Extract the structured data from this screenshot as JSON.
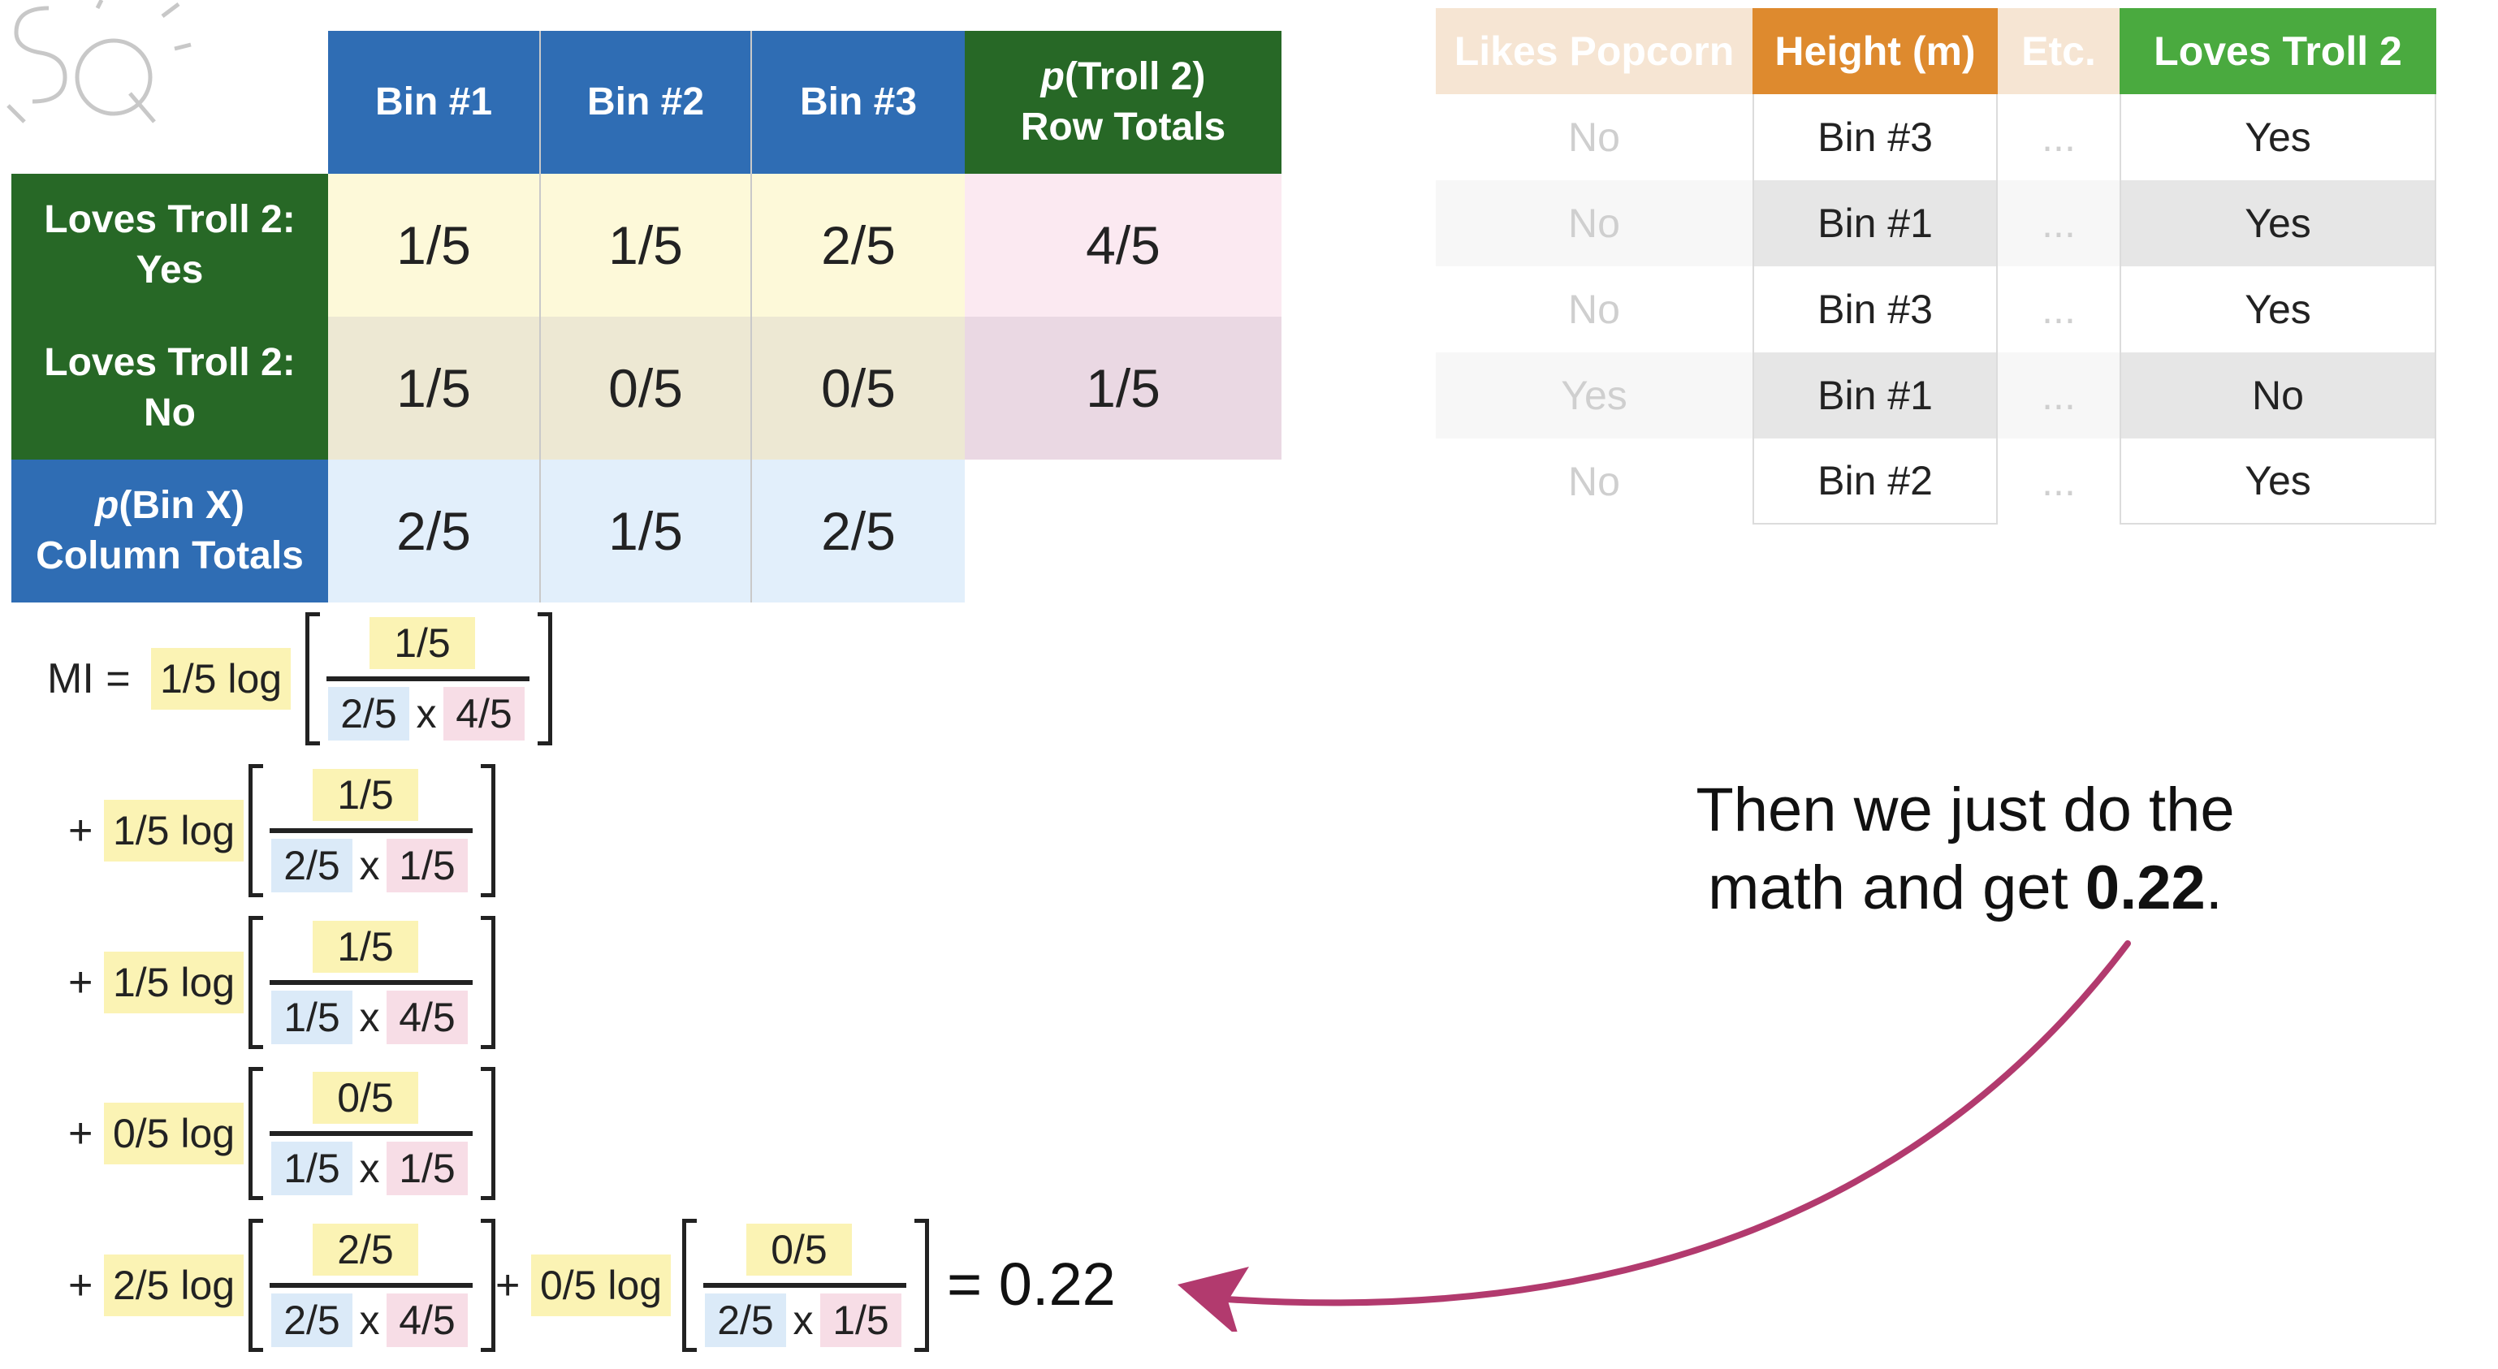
{
  "joint_table": {
    "col_headers": [
      "Bin #1",
      "Bin #2",
      "Bin #3"
    ],
    "row_total_header": {
      "p": "p",
      "line1": "(Troll 2)",
      "line2": "Row Totals"
    },
    "rows": [
      {
        "label_line1": "Loves Troll 2:",
        "label_line2": "Yes",
        "values": [
          "1/5",
          "1/5",
          "2/5"
        ],
        "total": "4/5"
      },
      {
        "label_line1": "Loves Troll 2:",
        "label_line2": "No",
        "values": [
          "1/5",
          "0/5",
          "0/5"
        ],
        "total": "1/5"
      }
    ],
    "col_total_label": {
      "p": "p",
      "line1": "(Bin X)",
      "line2": "Column Totals"
    },
    "col_totals": [
      "2/5",
      "1/5",
      "2/5"
    ],
    "colors": {
      "blue_header": "#2f6db4",
      "green_header": "#276826",
      "yellow_cell": "#fdf9d9",
      "pink_cell": "#fbe9f1",
      "blue_cell": "#e2effb"
    }
  },
  "data_table": {
    "headers": [
      "Likes Popcorn",
      "Height (m)",
      "Etc.",
      "Loves Troll 2"
    ],
    "header_colors": [
      "#f6e5d3",
      "#de8a2e",
      "#f6e5d3",
      "#4aaa3f"
    ],
    "rows": [
      [
        "No",
        "Bin #3",
        "...",
        "Yes"
      ],
      [
        "No",
        "Bin #1",
        "...",
        "Yes"
      ],
      [
        "No",
        "Bin #3",
        "...",
        "Yes"
      ],
      [
        "Yes",
        "Bin #1",
        "...",
        "No"
      ],
      [
        "No",
        "Bin #2",
        "...",
        "Yes"
      ]
    ]
  },
  "formula": {
    "lhs": "MI =",
    "plus": "+",
    "times": "x",
    "terms": [
      {
        "coef": "1/5 log",
        "num": "1/5",
        "den_a": "2/5",
        "den_b": "4/5"
      },
      {
        "coef": "1/5 log",
        "num": "1/5",
        "den_a": "2/5",
        "den_b": "1/5"
      },
      {
        "coef": "1/5 log",
        "num": "1/5",
        "den_a": "1/5",
        "den_b": "4/5"
      },
      {
        "coef": "0/5 log",
        "num": "0/5",
        "den_a": "1/5",
        "den_b": "1/5"
      },
      {
        "coef": "2/5 log",
        "num": "2/5",
        "den_a": "2/5",
        "den_b": "4/5"
      },
      {
        "coef": "0/5 log",
        "num": "0/5",
        "den_a": "2/5",
        "den_b": "1/5"
      }
    ],
    "result": "= 0.22"
  },
  "caption": {
    "part1": "Then we just do the",
    "part2": "math and get ",
    "bold": "0.22",
    "part3": "."
  },
  "arrow_color": "#b23a6e"
}
